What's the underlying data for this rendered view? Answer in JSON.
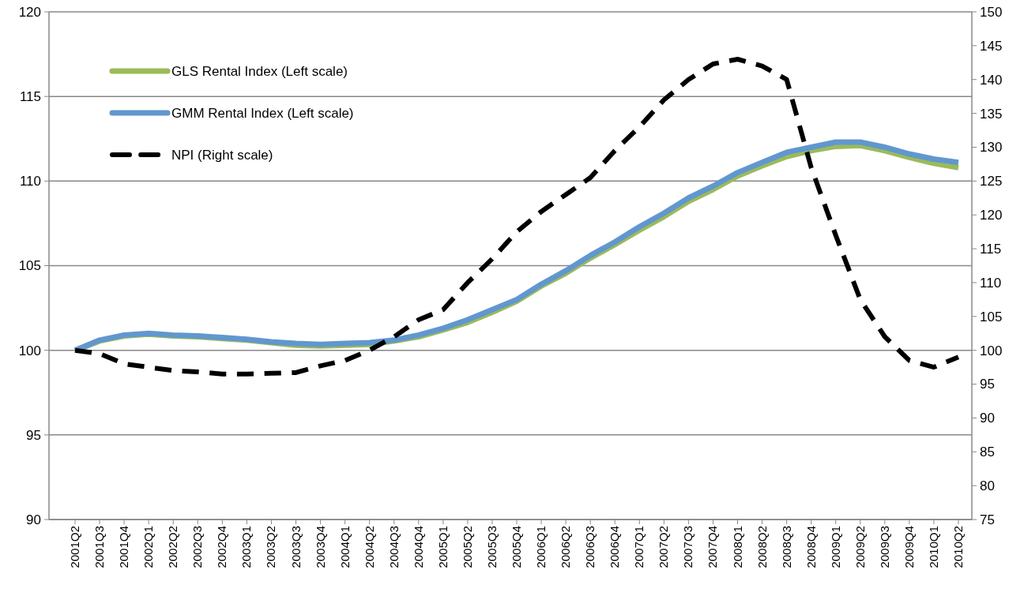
{
  "chart_data": {
    "type": "line",
    "categories": [
      "2001Q2",
      "2001Q3",
      "2001Q4",
      "2002Q1",
      "2002Q2",
      "2002Q3",
      "2002Q4",
      "2003Q1",
      "2003Q2",
      "2003Q3",
      "2003Q4",
      "2004Q1",
      "2004Q2",
      "2004Q3",
      "2004Q4",
      "2005Q1",
      "2005Q2",
      "2005Q3",
      "2005Q4",
      "2006Q1",
      "2006Q2",
      "2006Q3",
      "2006Q4",
      "2007Q1",
      "2007Q2",
      "2007Q3",
      "2007Q4",
      "2008Q1",
      "2008Q2",
      "2008Q3",
      "2008Q4",
      "2009Q1",
      "2009Q2",
      "2009Q3",
      "2009Q4",
      "2010Q1",
      "2010Q2"
    ],
    "series": [
      {
        "name": "GLS Rental Index (Left scale)",
        "color": "#9bbb59",
        "line_style": "solid",
        "values": [
          100,
          100.55,
          100.85,
          100.95,
          100.85,
          100.8,
          100.7,
          100.6,
          100.45,
          100.3,
          100.25,
          100.3,
          100.35,
          100.55,
          100.8,
          101.2,
          101.65,
          102.25,
          102.9,
          103.8,
          104.55,
          105.45,
          106.25,
          107.1,
          107.9,
          108.8,
          109.5,
          110.3,
          110.9,
          111.45,
          111.8,
          112.05,
          112.1,
          111.8,
          111.4,
          111.05,
          110.8
        ]
      },
      {
        "name": "GMM Rental Index (Left scale)",
        "color": "#6197cf",
        "line_style": "solid",
        "values": [
          100,
          100.6,
          100.9,
          101,
          100.9,
          100.85,
          100.75,
          100.65,
          100.5,
          100.4,
          100.35,
          100.4,
          100.45,
          100.6,
          100.9,
          101.3,
          101.8,
          102.4,
          103,
          103.9,
          104.7,
          105.6,
          106.4,
          107.3,
          108.1,
          109,
          109.7,
          110.5,
          111.1,
          111.7,
          112,
          112.3,
          112.3,
          112,
          111.6,
          111.3,
          111.1
        ]
      },
      {
        "name": "NPI (Right scale)",
        "color": "#000000",
        "axis": "y2",
        "line_style": "dashed",
        "values": [
          100,
          99.5,
          98,
          97.5,
          97,
          96.8,
          96.5,
          96.5,
          96.6,
          96.7,
          97.7,
          98.5,
          100,
          102,
          104.5,
          106,
          110,
          113.5,
          117.5,
          120.5,
          123,
          125.5,
          129.5,
          133,
          137,
          140,
          142.3,
          143,
          142,
          140,
          127,
          117,
          107.5,
          102,
          98.5,
          97.5,
          99
        ]
      }
    ],
    "ylim": [
      90,
      120
    ],
    "yticks": [
      90,
      95,
      100,
      105,
      110,
      115,
      120
    ],
    "y2lim": [
      75,
      150
    ],
    "y2ticks": [
      75,
      80,
      85,
      90,
      95,
      100,
      105,
      110,
      115,
      120,
      125,
      130,
      135,
      140,
      145,
      150
    ],
    "grid": "y",
    "legend": "top left"
  }
}
